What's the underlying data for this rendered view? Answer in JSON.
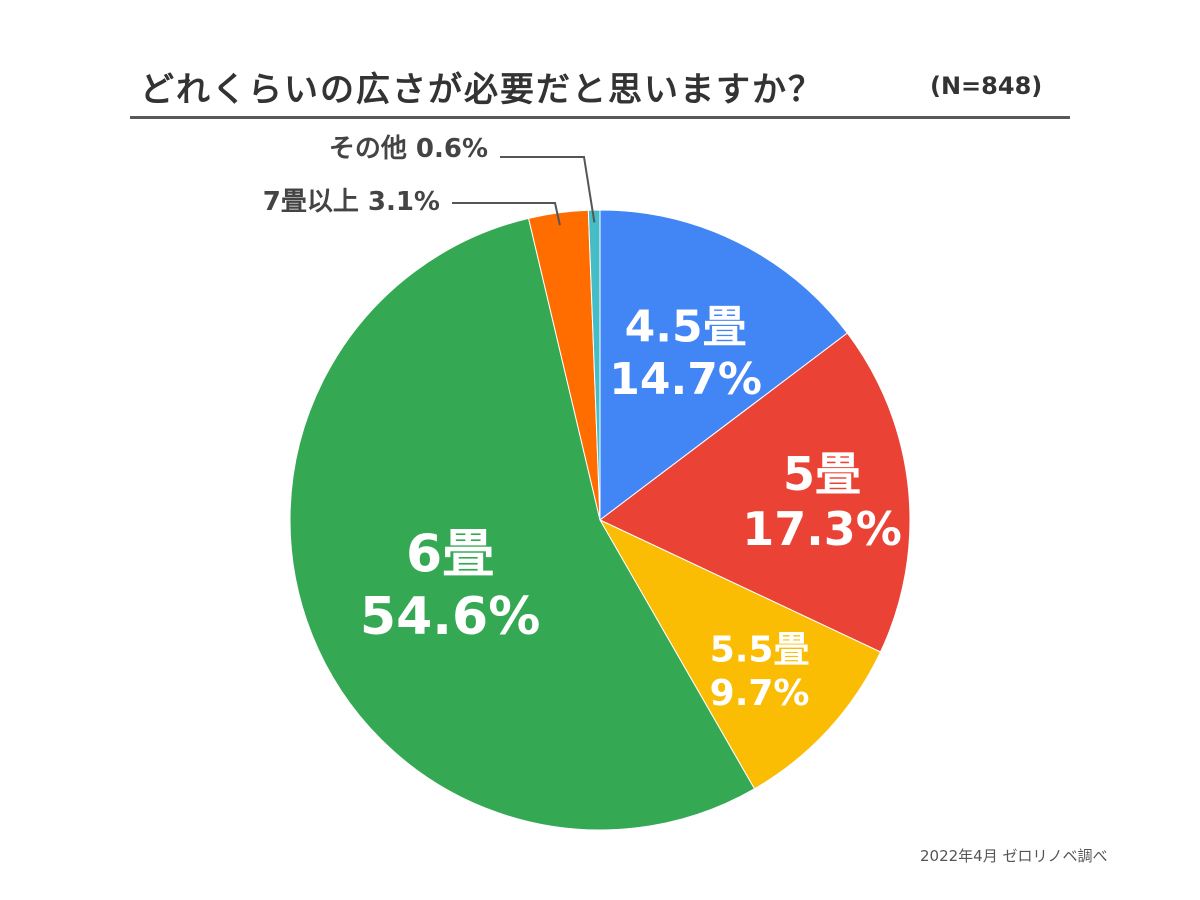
{
  "title": "どれくらいの広さが必要だと思いますか？",
  "sample_size": "(N=848)",
  "source": "2022年4月 ゼロリノベ調べ",
  "chart_data": {
    "type": "pie",
    "start": "top",
    "direction": "clockwise",
    "slices": [
      {
        "category": "4.5畳",
        "value": 14.7,
        "label": "14.7%",
        "color": "#4285F4"
      },
      {
        "category": "5畳",
        "value": 17.3,
        "label": "17.3%",
        "color": "#EA4335"
      },
      {
        "category": "5.5畳",
        "value": 9.7,
        "label": "9.7%",
        "color": "#FBBC04"
      },
      {
        "category": "6畳",
        "value": 54.6,
        "label": "54.6%",
        "color": "#34A853"
      },
      {
        "category": "7畳以上",
        "value": 3.1,
        "label": "3.1%",
        "color": "#FF6D01"
      },
      {
        "category": "その他",
        "value": 0.6,
        "label": "0.6%",
        "color": "#46BDC6"
      }
    ]
  }
}
